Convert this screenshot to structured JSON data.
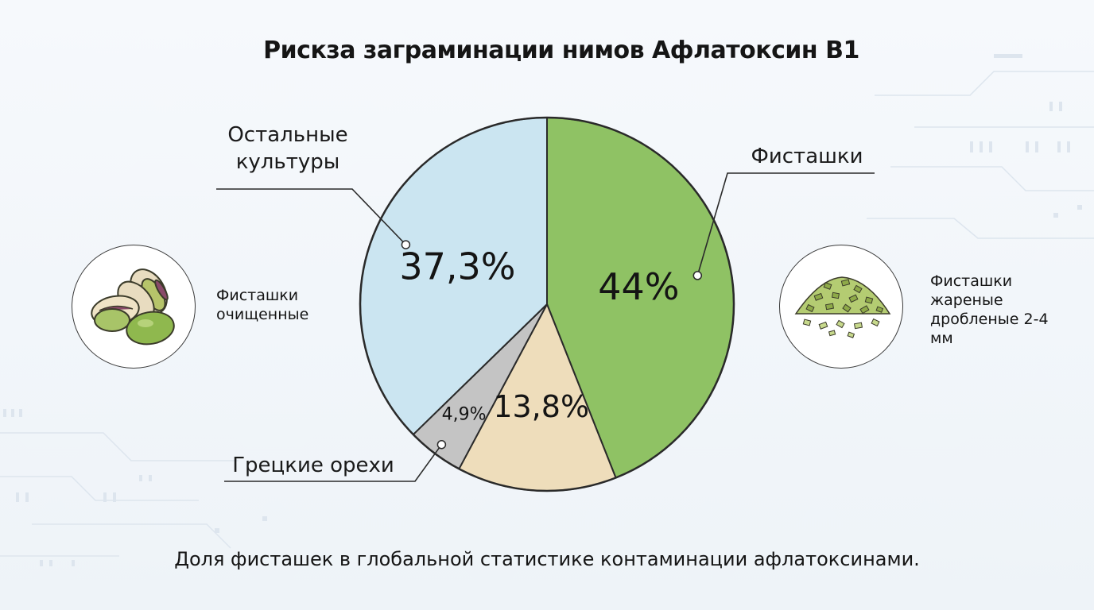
{
  "title": "Рискза заграминации нимов Афлатоксин B1",
  "caption": "Доля фисташек в глобальной статистике контаминации афлатоксинами.",
  "images": [
    {
      "label": "Фисташки очищенные",
      "icon": "pistachio-shelled-icon"
    },
    {
      "label": "Фисташки жареные дробленые 2-4 мм",
      "icon": "crushed-pistachio-icon"
    }
  ],
  "chart_data": {
    "type": "pie",
    "title": "Рискза заграминации нимов Афлатоксин B1",
    "start": "12 o'clock, clockwise",
    "slices": [
      {
        "label": "Фисташки",
        "value": 44,
        "value_label": "44%",
        "color": "#8fc264"
      },
      {
        "label": "",
        "value": 13.8,
        "value_label": "13,8%",
        "color": "#eeddbb"
      },
      {
        "label": "Грецкие орехи",
        "value": 4.9,
        "value_label": "4,9%",
        "color": "#c4c4c4"
      },
      {
        "label": "Остальные культуры",
        "value": 37.3,
        "value_label": "37,3%",
        "color": "#cbe5f1"
      }
    ]
  }
}
